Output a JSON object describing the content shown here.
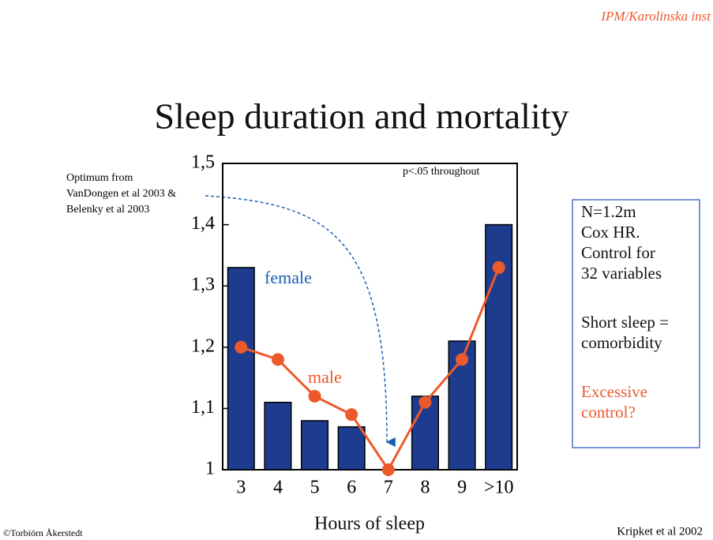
{
  "header": "IPM/Karolinska inst",
  "chart_data": {
    "type": "bar",
    "title": "Sleep duration and mortality",
    "x_label": "Hours of sleep",
    "categories": [
      "3",
      "4",
      "5",
      "6",
      "7",
      "8",
      "9",
      ">10"
    ],
    "series": [
      {
        "name": "female",
        "color": "#1e3c8e",
        "values": [
          1.33,
          1.11,
          1.08,
          1.07,
          1.0,
          1.12,
          1.21,
          1.4
        ]
      },
      {
        "name": "male",
        "color": "#ec5a2c",
        "values": [
          1.2,
          1.18,
          1.12,
          1.09,
          1.0,
          1.11,
          1.18,
          1.33
        ]
      }
    ],
    "ylim": [
      1,
      1.5
    ],
    "yticks": [
      1,
      {
        "value": 1.1,
        "label": "1,1"
      },
      {
        "value": 1.2,
        "label": "1,2"
      },
      {
        "value": 1.3,
        "label": "1,3"
      },
      {
        "value": 1.4,
        "label": "1,4"
      },
      {
        "value": 1.5,
        "label": "1,5"
      }
    ],
    "annotations": [
      "Optimum from",
      "VanDongen et al 2003 &",
      "Belenky et al 2003",
      "p<.05 throughout"
    ]
  },
  "box": {
    "lines": [
      "N=1.2m",
      "Cox HR.",
      "Control for",
      "32 variables",
      "Short sleep =",
      "comorbidity",
      "Excessive",
      "control?"
    ]
  },
  "footer": {
    "left": "©Torbiörn Åkerstedt",
    "right": "Kripket et al 2002"
  }
}
